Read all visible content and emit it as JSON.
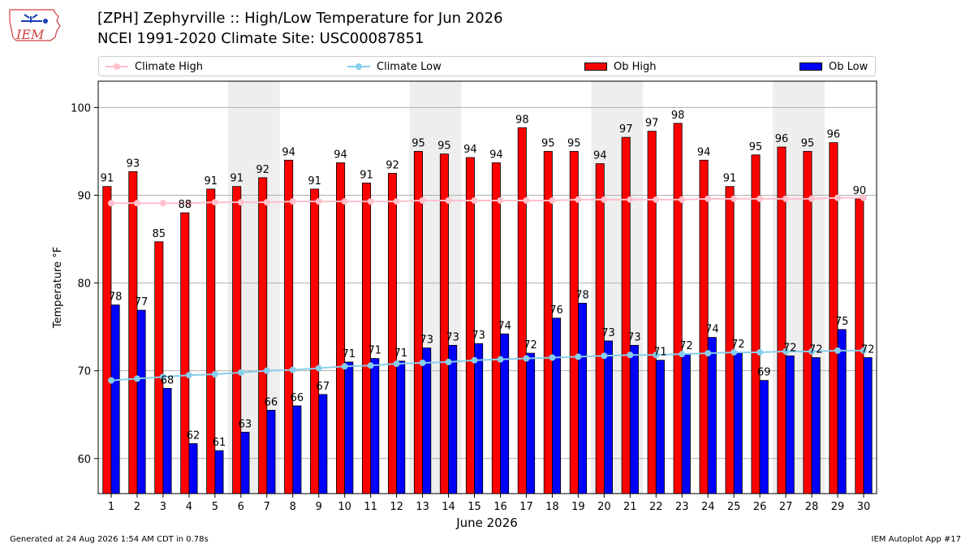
{
  "header": {
    "title": "[ZPH] Zephyrville :: High/Low Temperature for Jun 2026",
    "subtitle": "NCEI 1991-2020 Climate Site: USC00087851",
    "logo_text": "IEM"
  },
  "legend": {
    "climate_high": "Climate High",
    "climate_low": "Climate Low",
    "ob_high": "Ob High",
    "ob_low": "Ob Low"
  },
  "footer": {
    "generated": "Generated at 24 Aug 2026 1:54 AM CDT in 0.78s",
    "app": "IEM Autoplot App #17"
  },
  "colors": {
    "ob_high": "#ff0000",
    "ob_low": "#0000ff",
    "climate_high": "#ffc0cb",
    "climate_low": "#87ceeb",
    "weekend_band": "#eeeeee"
  },
  "chart_data": {
    "type": "bar",
    "xlabel": "June 2026",
    "ylabel": "Temperature °F",
    "ylim": [
      56,
      103
    ],
    "yticks": [
      60,
      70,
      80,
      90,
      100
    ],
    "grid": true,
    "legend_position": "top",
    "x": [
      1,
      2,
      3,
      4,
      5,
      6,
      7,
      8,
      9,
      10,
      11,
      12,
      13,
      14,
      15,
      16,
      17,
      18,
      19,
      20,
      21,
      22,
      23,
      24,
      25,
      26,
      27,
      28,
      29,
      30
    ],
    "shaded_weekend_days": [
      [
        6,
        7
      ],
      [
        13,
        14
      ],
      [
        20,
        21
      ],
      [
        27,
        28
      ]
    ],
    "series": [
      {
        "name": "Ob High",
        "values": [
          91,
          93,
          85,
          88,
          91,
          91,
          92,
          94,
          91,
          94,
          91,
          92,
          95,
          95,
          94,
          94,
          98,
          95,
          95,
          94,
          97,
          97,
          98,
          94,
          91,
          95,
          96,
          95,
          96,
          90
        ],
        "plotted": [
          91.0,
          92.7,
          84.7,
          88.0,
          90.7,
          91.0,
          92.0,
          94.0,
          90.7,
          93.7,
          91.4,
          92.5,
          95.0,
          94.7,
          94.3,
          93.7,
          97.7,
          95.0,
          95.0,
          93.6,
          96.6,
          97.3,
          98.2,
          94.0,
          91.0,
          94.6,
          95.5,
          95.0,
          96.0,
          89.6
        ]
      },
      {
        "name": "Ob Low",
        "values": [
          78,
          77,
          68,
          62,
          61,
          63,
          66,
          66,
          67,
          71,
          71,
          71,
          73,
          73,
          73,
          74,
          72,
          76,
          78,
          73,
          73,
          71,
          72,
          74,
          72,
          69,
          72,
          72,
          75,
          72
        ],
        "plotted": [
          77.5,
          76.9,
          68.0,
          61.7,
          60.9,
          63.0,
          65.5,
          66.0,
          67.3,
          71.0,
          71.4,
          71.1,
          72.6,
          72.9,
          73.1,
          74.2,
          72.0,
          76.0,
          77.7,
          73.4,
          72.9,
          71.2,
          71.9,
          73.8,
          72.1,
          68.9,
          71.7,
          71.5,
          74.7,
          71.5
        ]
      },
      {
        "name": "Climate High",
        "values": [
          89.1,
          89.1,
          89.1,
          89.1,
          89.2,
          89.2,
          89.2,
          89.3,
          89.3,
          89.3,
          89.3,
          89.3,
          89.4,
          89.4,
          89.4,
          89.4,
          89.4,
          89.4,
          89.5,
          89.5,
          89.5,
          89.5,
          89.5,
          89.6,
          89.6,
          89.6,
          89.6,
          89.6,
          89.7,
          89.7
        ]
      },
      {
        "name": "Climate Low",
        "values": [
          68.9,
          69.1,
          69.3,
          69.5,
          69.6,
          69.8,
          70.0,
          70.1,
          70.3,
          70.5,
          70.6,
          70.8,
          70.9,
          71.0,
          71.2,
          71.3,
          71.4,
          71.5,
          71.6,
          71.7,
          71.8,
          71.8,
          71.9,
          72.0,
          72.1,
          72.1,
          72.2,
          72.2,
          72.3,
          72.3
        ]
      }
    ]
  }
}
